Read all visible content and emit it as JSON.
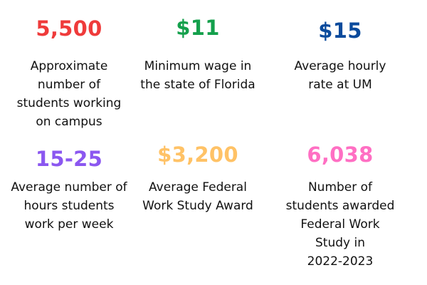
{
  "stats": [
    {
      "value": "5,500",
      "label": "Approximate\nnumber of\nstudents working\non campus",
      "color": "#ef3b3b"
    },
    {
      "value": "$11",
      "label": "Minimum wage in\nthe state of Florida",
      "color": "#14a04c"
    },
    {
      "value": "$15",
      "label": "Average hourly\nrate at UM",
      "color": "#0a4a9c"
    },
    {
      "value": "15-25",
      "label": "Average number of\nhours students\nwork per week",
      "color": "#8b57f0"
    },
    {
      "value": "$3,200",
      "label": "Average Federal\nWork Study Award",
      "color": "#ffc266"
    },
    {
      "value": "6,038",
      "label": "Number of\nstudents awarded\nFederal Work\nStudy in\n2022-2023",
      "color": "#ff6fc3"
    }
  ]
}
